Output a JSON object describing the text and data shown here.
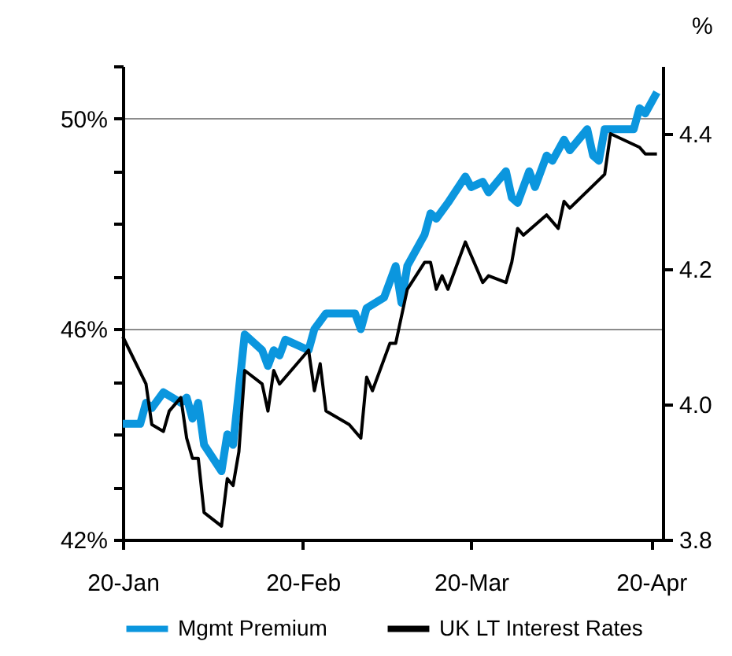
{
  "chart_data": {
    "type": "line",
    "y2label": "%",
    "xlim": [
      "--01-20",
      "--04-22"
    ],
    "xticks": [
      {
        "value": "--01-20",
        "label": "20-Jan"
      },
      {
        "value": "--02-20",
        "label": "20-Feb"
      },
      {
        "value": "--03-20",
        "label": "20-Mar"
      },
      {
        "value": "--04-20",
        "label": "20-Apr"
      }
    ],
    "ylim": [
      42,
      51
    ],
    "yticks": [
      {
        "value": 42,
        "label": "42%"
      },
      {
        "value": 43,
        "label": null
      },
      {
        "value": 44,
        "label": null
      },
      {
        "value": 45,
        "label": null
      },
      {
        "value": 46,
        "label": "46%"
      },
      {
        "value": 47,
        "label": null
      },
      {
        "value": 48,
        "label": null
      },
      {
        "value": 49,
        "label": null
      },
      {
        "value": 50,
        "label": "50%"
      },
      {
        "value": 51,
        "label": null
      }
    ],
    "y2lim": [
      3.8,
      4.5
    ],
    "y2ticks": [
      {
        "value": 3.8,
        "label": "3.8"
      },
      {
        "value": 4.0,
        "label": "4.0"
      },
      {
        "value": 4.2,
        "label": "4.2"
      },
      {
        "value": 4.4,
        "label": "4.4"
      }
    ],
    "grid": "y",
    "legend": "bottom",
    "line_style": "solid",
    "marker": "none",
    "series": [
      {
        "name": "Mgmt Premium",
        "color": "#0b96de",
        "x": [
          "--01-20",
          "--01-23",
          "--01-24",
          "--01-25",
          "--01-27",
          "--01-30",
          "--01-31",
          "--02-01",
          "--02-02",
          "--02-03",
          "--02-06",
          "--02-07",
          "--02-08",
          "--02-10",
          "--02-13",
          "--02-14",
          "--02-15",
          "--02-16",
          "--02-17",
          "--02-21",
          "--02-22",
          "--02-24",
          "--02-28",
          "--02-29",
          "--03-01",
          "--03-02",
          "--03-05",
          "--03-07",
          "--03-08",
          "--03-09",
          "--03-12",
          "--03-13",
          "--03-14",
          "--03-16",
          "--03-19",
          "--03-20",
          "--03-22",
          "--03-23",
          "--03-26",
          "--03-27",
          "--03-28",
          "--03-30",
          "--03-31",
          "--04-02",
          "--04-03",
          "--04-05",
          "--04-06",
          "--04-09",
          "--04-10",
          "--04-11",
          "--04-12",
          "--04-17",
          "--04-18",
          "--04-19",
          "--04-21"
        ],
        "values": [
          44.2,
          44.2,
          44.6,
          44.5,
          44.8,
          44.6,
          44.7,
          44.3,
          44.6,
          43.8,
          43.3,
          44.0,
          43.8,
          45.9,
          45.6,
          45.3,
          45.6,
          45.5,
          45.8,
          45.6,
          46.0,
          46.3,
          46.3,
          46.3,
          46.0,
          46.4,
          46.6,
          47.2,
          46.5,
          47.2,
          47.8,
          48.2,
          48.1,
          48.4,
          48.9,
          48.7,
          48.8,
          48.6,
          49.0,
          48.5,
          48.4,
          49.0,
          48.7,
          49.3,
          49.2,
          49.6,
          49.4,
          49.8,
          49.3,
          49.2,
          49.8,
          49.8,
          50.2,
          50.1,
          50.5
        ]
      },
      {
        "name": "UK LT Interest Rates",
        "color": "#000000",
        "axis": "y2",
        "x": [
          "--01-20",
          "--01-24",
          "--01-25",
          "--01-27",
          "--01-28",
          "--01-30",
          "--01-31",
          "--02-01",
          "--02-02",
          "--02-03",
          "--02-06",
          "--02-07",
          "--02-08",
          "--02-09",
          "--02-10",
          "--02-13",
          "--02-14",
          "--02-15",
          "--02-16",
          "--02-21",
          "--02-22",
          "--02-23",
          "--02-24",
          "--02-28",
          "--03-01",
          "--03-02",
          "--03-03",
          "--03-06",
          "--03-07",
          "--03-09",
          "--03-12",
          "--03-13",
          "--03-14",
          "--03-15",
          "--03-16",
          "--03-19",
          "--03-20",
          "--03-22",
          "--03-23",
          "--03-26",
          "--03-27",
          "--03-28",
          "--03-29",
          "--04-02",
          "--04-04",
          "--04-05",
          "--04-06",
          "--04-12",
          "--04-13",
          "--04-18",
          "--04-19",
          "--04-21"
        ],
        "values": [
          4.1,
          4.03,
          3.97,
          3.96,
          3.99,
          4.01,
          3.95,
          3.92,
          3.92,
          3.84,
          3.82,
          3.89,
          3.88,
          3.93,
          4.05,
          4.03,
          3.99,
          4.05,
          4.03,
          4.08,
          4.02,
          4.06,
          3.99,
          3.97,
          3.95,
          4.04,
          4.02,
          4.09,
          4.09,
          4.17,
          4.21,
          4.21,
          4.17,
          4.19,
          4.17,
          4.24,
          4.22,
          4.18,
          4.19,
          4.18,
          4.21,
          4.26,
          4.25,
          4.28,
          4.26,
          4.3,
          4.29,
          4.34,
          4.4,
          4.38,
          4.37,
          4.37
        ]
      }
    ]
  }
}
